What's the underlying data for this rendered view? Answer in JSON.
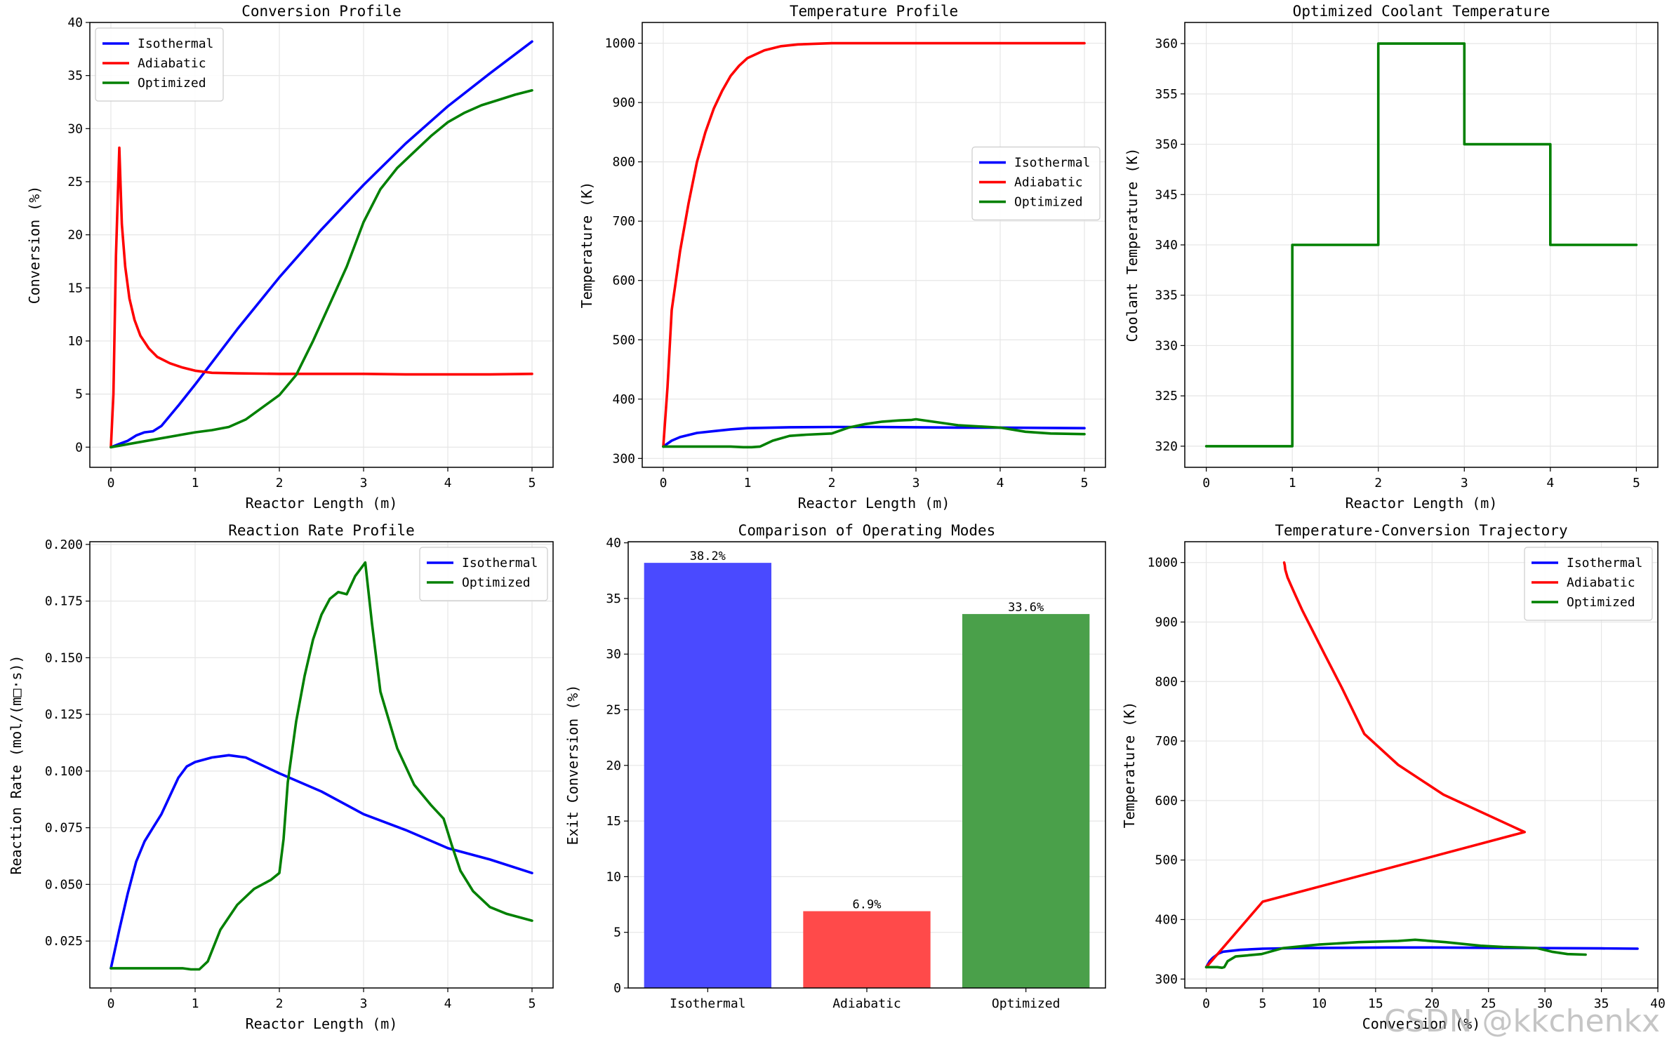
{
  "watermark": "CSDN @kkchenkx",
  "colors": {
    "isothermal": "#0000ff",
    "adiabatic": "#ff0000",
    "optimized": "#008000",
    "bar_isothermal": "#4a4aff",
    "bar_adiabatic": "#ff4a4a",
    "bar_optimized": "#4aa04a"
  },
  "chart_data": [
    {
      "id": "conversion",
      "type": "line",
      "title": "Conversion Profile",
      "xlabel": "Reactor Length (m)",
      "ylabel": "Conversion (%)",
      "xlim": [
        -0.25,
        5.25
      ],
      "ylim": [
        -1.9,
        40
      ],
      "xticks": [
        0,
        1,
        2,
        3,
        4,
        5
      ],
      "yticks": [
        0,
        5,
        10,
        15,
        20,
        25,
        30,
        35,
        40
      ],
      "grid": true,
      "legend": "top-left",
      "series": [
        {
          "name": "Isothermal",
          "color": "#0000ff",
          "x": [
            0,
            0.1,
            0.2,
            0.3,
            0.4,
            0.5,
            0.6,
            0.8,
            1,
            1.5,
            2,
            2.5,
            3,
            3.5,
            4,
            4.5,
            5
          ],
          "y": [
            0,
            0.3,
            0.6,
            1.1,
            1.4,
            1.5,
            2,
            3.9,
            5.9,
            11.1,
            16,
            20.5,
            24.7,
            28.6,
            32.1,
            35.2,
            38.2
          ]
        },
        {
          "name": "Adiabatic",
          "color": "#ff0000",
          "x": [
            0,
            0.03,
            0.06,
            0.1,
            0.13,
            0.17,
            0.22,
            0.28,
            0.35,
            0.45,
            0.55,
            0.7,
            0.85,
            1,
            1.2,
            1.5,
            2,
            2.5,
            3,
            3.5,
            4,
            4.5,
            5
          ],
          "y": [
            0,
            5,
            18,
            28.2,
            21,
            17,
            14,
            12,
            10.5,
            9.3,
            8.5,
            7.9,
            7.5,
            7.2,
            7.0,
            6.95,
            6.9,
            6.9,
            6.9,
            6.85,
            6.85,
            6.85,
            6.9
          ]
        },
        {
          "name": "Optimized",
          "color": "#008000",
          "x": [
            0,
            0.5,
            1,
            1.2,
            1.4,
            1.6,
            2,
            2.2,
            2.4,
            2.6,
            2.8,
            3,
            3.2,
            3.4,
            3.6,
            3.8,
            4,
            4.2,
            4.4,
            4.6,
            4.8,
            5
          ],
          "y": [
            0,
            0.7,
            1.4,
            1.6,
            1.9,
            2.6,
            4.9,
            6.8,
            10,
            13.5,
            17,
            21.2,
            24.3,
            26.3,
            27.8,
            29.3,
            30.6,
            31.5,
            32.2,
            32.7,
            33.2,
            33.6
          ]
        }
      ]
    },
    {
      "id": "temperature",
      "type": "line",
      "title": "Temperature Profile",
      "xlabel": "Reactor Length (m)",
      "ylabel": "Temperature (K)",
      "xlim": [
        -0.25,
        5.25
      ],
      "ylim": [
        285,
        1035
      ],
      "xticks": [
        0,
        1,
        2,
        3,
        4,
        5
      ],
      "yticks": [
        300,
        400,
        500,
        600,
        700,
        800,
        900,
        1000
      ],
      "grid": true,
      "legend": "center-right",
      "series": [
        {
          "name": "Isothermal",
          "color": "#0000ff",
          "x": [
            0,
            0.1,
            0.2,
            0.4,
            0.6,
            0.8,
            1,
            1.5,
            2,
            2.5,
            3,
            3.5,
            4,
            4.5,
            5
          ],
          "y": [
            320,
            330,
            336,
            343,
            346,
            349,
            351,
            352.5,
            353,
            353,
            352.5,
            352,
            352,
            351.5,
            351
          ]
        },
        {
          "name": "Adiabatic",
          "color": "#ff0000",
          "x": [
            0,
            0.05,
            0.1,
            0.2,
            0.3,
            0.4,
            0.5,
            0.6,
            0.7,
            0.8,
            0.9,
            1,
            1.2,
            1.4,
            1.6,
            2,
            2.5,
            3,
            4,
            5
          ],
          "y": [
            320,
            420,
            550,
            650,
            730,
            800,
            850,
            890,
            920,
            945,
            962,
            975,
            988,
            995,
            998,
            1000,
            1000,
            1000,
            1000,
            1000
          ]
        },
        {
          "name": "Optimized",
          "color": "#008000",
          "x": [
            0,
            0.5,
            0.8,
            0.95,
            1.05,
            1.15,
            1.3,
            1.5,
            1.7,
            2,
            2.2,
            2.4,
            2.6,
            2.8,
            2.95,
            3,
            3.2,
            3.5,
            4,
            4.3,
            4.6,
            5
          ],
          "y": [
            320,
            320,
            320,
            319,
            319,
            320,
            330,
            338,
            340,
            342,
            352,
            358,
            362,
            364,
            365,
            366,
            362,
            356,
            352,
            345,
            342,
            341
          ]
        }
      ]
    },
    {
      "id": "coolant",
      "type": "line",
      "title": "Optimized Coolant Temperature",
      "xlabel": "Reactor Length (m)",
      "ylabel": "Coolant Temperature (K)",
      "xlim": [
        -0.25,
        5.25
      ],
      "ylim": [
        317.9,
        362.1
      ],
      "xticks": [
        0,
        1,
        2,
        3,
        4,
        5
      ],
      "yticks": [
        320,
        325,
        330,
        335,
        340,
        345,
        350,
        355,
        360
      ],
      "grid": true,
      "legend": "none",
      "series": [
        {
          "name": "Coolant",
          "color": "#008000",
          "x": [
            0,
            1,
            1,
            2,
            2,
            3,
            3,
            4,
            4,
            5
          ],
          "y": [
            320,
            320,
            340,
            340,
            360,
            360,
            350,
            350,
            340,
            340
          ]
        }
      ]
    },
    {
      "id": "rate",
      "type": "line",
      "title": "Reaction Rate Profile",
      "xlabel": "Reactor Length (m)",
      "ylabel": "Reaction Rate (mol/(m³·s))",
      "ylabel_display": "Reaction Rate (mol/(m□·s))",
      "xlim": [
        -0.25,
        5.25
      ],
      "ylim": [
        0.0043,
        0.2012
      ],
      "xticks": [
        0,
        1,
        2,
        3,
        4,
        5
      ],
      "yticks": [
        0.025,
        0.05,
        0.075,
        0.1,
        0.125,
        0.15,
        0.175,
        0.2
      ],
      "ytick_labels": [
        "0.025",
        "0.050",
        "0.075",
        "0.100",
        "0.125",
        "0.150",
        "0.175",
        "0.200"
      ],
      "grid": true,
      "legend": "top-right",
      "series": [
        {
          "name": "Isothermal",
          "color": "#0000ff",
          "x": [
            0,
            0.1,
            0.2,
            0.3,
            0.4,
            0.5,
            0.6,
            0.7,
            0.8,
            0.9,
            1,
            1.2,
            1.4,
            1.6,
            2,
            2.5,
            3,
            3.5,
            4,
            4.5,
            5
          ],
          "y": [
            0.013,
            0.03,
            0.046,
            0.06,
            0.069,
            0.075,
            0.081,
            0.089,
            0.097,
            0.102,
            0.104,
            0.106,
            0.107,
            0.106,
            0.099,
            0.091,
            0.081,
            0.074,
            0.066,
            0.061,
            0.055
          ]
        },
        {
          "name": "Optimized",
          "color": "#008000",
          "x": [
            0,
            0.5,
            0.85,
            0.95,
            1.05,
            1.15,
            1.3,
            1.5,
            1.7,
            1.9,
            2.0,
            2.05,
            2.1,
            2.2,
            2.3,
            2.4,
            2.5,
            2.6,
            2.7,
            2.8,
            2.9,
            3.0,
            3.02,
            3.1,
            3.2,
            3.4,
            3.6,
            3.8,
            3.95,
            4.05,
            4.15,
            4.3,
            4.5,
            4.7,
            5
          ],
          "y": [
            0.013,
            0.013,
            0.013,
            0.0125,
            0.0125,
            0.016,
            0.03,
            0.041,
            0.048,
            0.052,
            0.055,
            0.07,
            0.095,
            0.122,
            0.142,
            0.158,
            0.169,
            0.176,
            0.179,
            0.178,
            0.186,
            0.191,
            0.192,
            0.165,
            0.135,
            0.11,
            0.094,
            0.085,
            0.079,
            0.067,
            0.056,
            0.047,
            0.04,
            0.037,
            0.034
          ]
        }
      ]
    },
    {
      "id": "comparison",
      "type": "bar",
      "title": "Comparison of Operating Modes",
      "xlabel": "",
      "ylabel": "Exit Conversion (%)",
      "categories": [
        "Isothermal",
        "Adiabatic",
        "Optimized"
      ],
      "values": [
        38.2,
        6.9,
        33.6
      ],
      "data_labels": [
        "38.2%",
        "6.9%",
        "33.6%"
      ],
      "colors": [
        "#4a4aff",
        "#ff4a4a",
        "#4aa04a"
      ],
      "ylim": [
        0,
        40.1
      ],
      "yticks": [
        0,
        5,
        10,
        15,
        20,
        25,
        30,
        35,
        40
      ],
      "grid": true,
      "legend": "none"
    },
    {
      "id": "trajectory",
      "type": "line",
      "title": "Temperature-Conversion Trajectory",
      "xlabel": "Conversion (%)",
      "ylabel": "Temperature (K)",
      "xlim": [
        -1.9,
        40
      ],
      "ylim": [
        285,
        1035
      ],
      "xticks": [
        0,
        5,
        10,
        15,
        20,
        25,
        30,
        35,
        40
      ],
      "yticks": [
        300,
        400,
        500,
        600,
        700,
        800,
        900,
        1000
      ],
      "grid": true,
      "legend": "top-right",
      "series": [
        {
          "name": "Isothermal",
          "color": "#0000ff",
          "x": [
            0,
            0.3,
            0.6,
            1.1,
            1.5,
            3,
            5,
            8,
            12,
            16,
            20,
            25,
            30,
            35,
            38.2
          ],
          "y": [
            320,
            330,
            336,
            343,
            346,
            349,
            351,
            352,
            352.5,
            353,
            353,
            352.5,
            352,
            351.5,
            351
          ]
        },
        {
          "name": "Adiabatic",
          "color": "#ff0000",
          "x": [
            0,
            5,
            28.2,
            21,
            17,
            14,
            12,
            10.5,
            9.3,
            8.5,
            7.9,
            7.5,
            7.2,
            7.0,
            6.95,
            6.9
          ],
          "y": [
            320,
            430,
            547,
            610,
            660,
            712,
            790,
            845,
            890,
            920,
            945,
            962,
            975,
            988,
            996,
            1000
          ]
        },
        {
          "name": "Optimized",
          "color": "#008000",
          "x": [
            0,
            1,
            1.4,
            1.6,
            1.9,
            2.6,
            4.9,
            6.8,
            10,
            13.5,
            17,
            18.5,
            21.2,
            24.3,
            26.3,
            28,
            29.3,
            30.6,
            32,
            33.6
          ],
          "y": [
            320,
            320,
            319,
            320,
            330,
            338,
            342,
            352,
            358,
            362,
            364,
            366,
            362,
            356,
            354,
            353,
            352,
            346,
            342,
            341
          ]
        }
      ]
    }
  ]
}
